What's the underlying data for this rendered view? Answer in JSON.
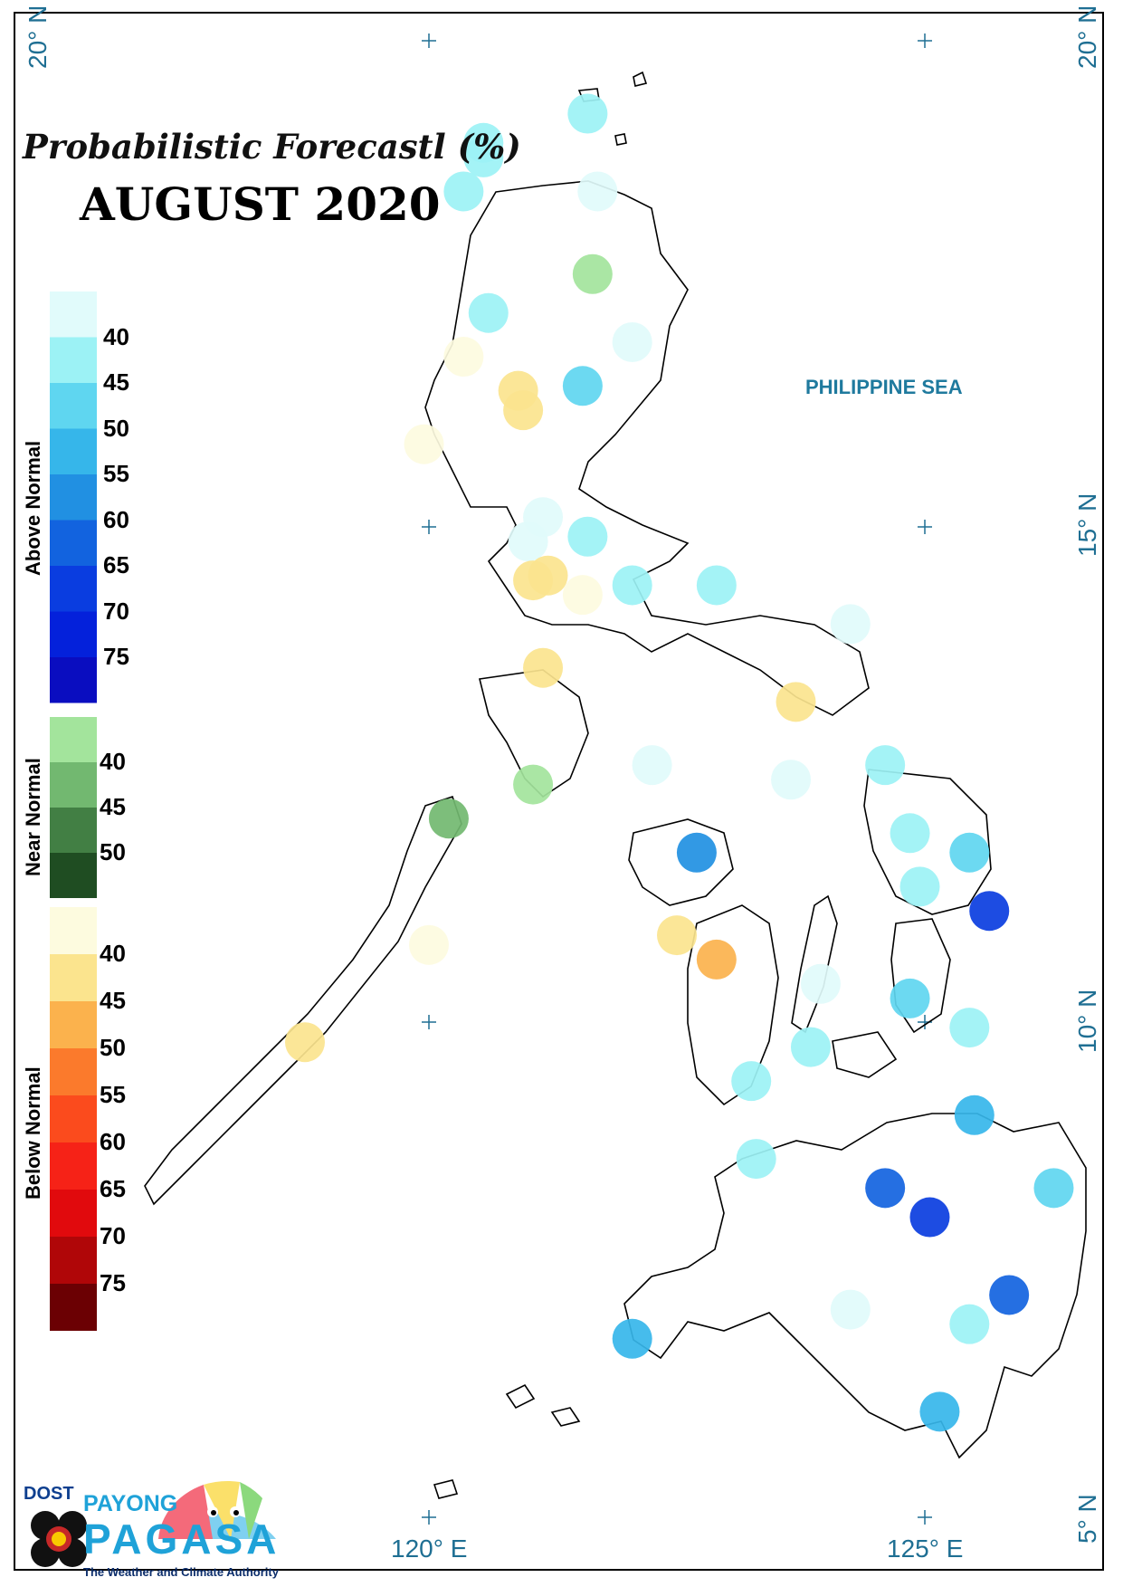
{
  "title": "Probabilistic Forecastl (%)",
  "subtitle": "AUGUST 2020",
  "sea_label": "PHILIPPINE SEA",
  "lat_labels": [
    "20° N",
    "15° N",
    "10° N",
    "5° N"
  ],
  "lon_labels": [
    "120° E",
    "125° E"
  ],
  "legend": {
    "above": {
      "label": "Above Normal",
      "ticks": [
        "40",
        "45",
        "50",
        "55",
        "60",
        "65",
        "70",
        "75"
      ],
      "colors": [
        "#e1fbfb",
        "#9cf2f5",
        "#5fd6f0",
        "#36b6ea",
        "#2190e2",
        "#1263df",
        "#0a3de0",
        "#0421db",
        "#0a0dc0"
      ]
    },
    "near": {
      "label": "Near Normal",
      "ticks": [
        "40",
        "45",
        "50"
      ],
      "colors": [
        "#a3e49c",
        "#72b870",
        "#427f44",
        "#1f4d22"
      ]
    },
    "below": {
      "label": "Below Normal",
      "ticks": [
        "40",
        "45",
        "50",
        "55",
        "60",
        "65",
        "70",
        "75"
      ],
      "colors": [
        "#fdfbdf",
        "#fbe48e",
        "#fbb24d",
        "#fb7a2c",
        "#fb4b1d",
        "#f62217",
        "#e10a0d",
        "#b00608",
        "#6b0003"
      ]
    }
  },
  "logo": {
    "dost": "DOST",
    "payong": "PAYONG",
    "pagasa": "PAGASA",
    "tagline": "The Weather and Climate Authority"
  },
  "stations": [
    {
      "lat": 19.25,
      "lon": 121.6,
      "color": "#9cf2f5"
    },
    {
      "lat": 18.95,
      "lon": 120.55,
      "color": "#9cf2f5"
    },
    {
      "lat": 18.8,
      "lon": 120.55,
      "color": "#9cf2f5"
    },
    {
      "lat": 18.45,
      "lon": 120.35,
      "color": "#9cf2f5"
    },
    {
      "lat": 18.45,
      "lon": 121.7,
      "color": "#e1fbfb"
    },
    {
      "lat": 17.6,
      "lon": 121.65,
      "color": "#a3e49c"
    },
    {
      "lat": 17.2,
      "lon": 120.6,
      "color": "#9cf2f5"
    },
    {
      "lat": 16.9,
      "lon": 122.05,
      "color": "#e1fbfb"
    },
    {
      "lat": 16.75,
      "lon": 120.35,
      "color": "#fdfbdf"
    },
    {
      "lat": 16.45,
      "lon": 121.55,
      "color": "#5fd6f0"
    },
    {
      "lat": 16.4,
      "lon": 120.9,
      "color": "#fbe48e"
    },
    {
      "lat": 16.2,
      "lon": 120.95,
      "color": "#fbe48e"
    },
    {
      "lat": 15.85,
      "lon": 119.95,
      "color": "#fdfbdf"
    },
    {
      "lat": 15.1,
      "lon": 121.15,
      "color": "#e1fbfb"
    },
    {
      "lat": 14.85,
      "lon": 121.0,
      "color": "#e1fbfb"
    },
    {
      "lat": 14.9,
      "lon": 121.6,
      "color": "#9cf2f5"
    },
    {
      "lat": 14.45,
      "lon": 121.05,
      "color": "#fbe48e"
    },
    {
      "lat": 14.5,
      "lon": 121.2,
      "color": "#fbe48e"
    },
    {
      "lat": 14.3,
      "lon": 121.55,
      "color": "#fdfbdf"
    },
    {
      "lat": 14.4,
      "lon": 122.05,
      "color": "#9cf2f5"
    },
    {
      "lat": 14.4,
      "lon": 122.9,
      "color": "#9cf2f5"
    },
    {
      "lat": 14.0,
      "lon": 124.25,
      "color": "#e1fbfb"
    },
    {
      "lat": 13.55,
      "lon": 121.15,
      "color": "#fbe48e"
    },
    {
      "lat": 13.2,
      "lon": 123.7,
      "color": "#fbe48e"
    },
    {
      "lat": 12.55,
      "lon": 122.25,
      "color": "#e1fbfb"
    },
    {
      "lat": 12.55,
      "lon": 124.6,
      "color": "#9cf2f5"
    },
    {
      "lat": 12.4,
      "lon": 123.65,
      "color": "#e1fbfb"
    },
    {
      "lat": 12.35,
      "lon": 121.05,
      "color": "#a3e49c"
    },
    {
      "lat": 12.0,
      "lon": 120.2,
      "color": "#72b870"
    },
    {
      "lat": 11.85,
      "lon": 124.85,
      "color": "#9cf2f5"
    },
    {
      "lat": 11.65,
      "lon": 125.45,
      "color": "#5fd6f0"
    },
    {
      "lat": 11.65,
      "lon": 122.7,
      "color": "#2190e2"
    },
    {
      "lat": 11.3,
      "lon": 124.95,
      "color": "#9cf2f5"
    },
    {
      "lat": 11.05,
      "lon": 125.65,
      "color": "#0a3de0"
    },
    {
      "lat": 10.7,
      "lon": 120.0,
      "color": "#fdfbdf"
    },
    {
      "lat": 10.8,
      "lon": 122.5,
      "color": "#fbe48e"
    },
    {
      "lat": 10.55,
      "lon": 122.9,
      "color": "#fbb24d"
    },
    {
      "lat": 10.3,
      "lon": 123.95,
      "color": "#e1fbfb"
    },
    {
      "lat": 10.15,
      "lon": 124.85,
      "color": "#5fd6f0"
    },
    {
      "lat": 9.85,
      "lon": 125.45,
      "color": "#9cf2f5"
    },
    {
      "lat": 9.7,
      "lon": 118.75,
      "color": "#fbe48e"
    },
    {
      "lat": 9.65,
      "lon": 123.85,
      "color": "#9cf2f5"
    },
    {
      "lat": 9.3,
      "lon": 123.25,
      "color": "#9cf2f5"
    },
    {
      "lat": 8.95,
      "lon": 125.5,
      "color": "#36b6ea"
    },
    {
      "lat": 8.5,
      "lon": 123.3,
      "color": "#9cf2f5"
    },
    {
      "lat": 8.2,
      "lon": 124.6,
      "color": "#1263df"
    },
    {
      "lat": 8.2,
      "lon": 126.3,
      "color": "#5fd6f0"
    },
    {
      "lat": 7.9,
      "lon": 125.05,
      "color": "#0a3de0"
    },
    {
      "lat": 7.1,
      "lon": 125.85,
      "color": "#1263df"
    },
    {
      "lat": 6.95,
      "lon": 124.25,
      "color": "#e1fbfb"
    },
    {
      "lat": 6.8,
      "lon": 125.45,
      "color": "#9cf2f5"
    },
    {
      "lat": 6.65,
      "lon": 122.05,
      "color": "#36b6ea"
    },
    {
      "lat": 5.9,
      "lon": 125.15,
      "color": "#36b6ea"
    }
  ]
}
